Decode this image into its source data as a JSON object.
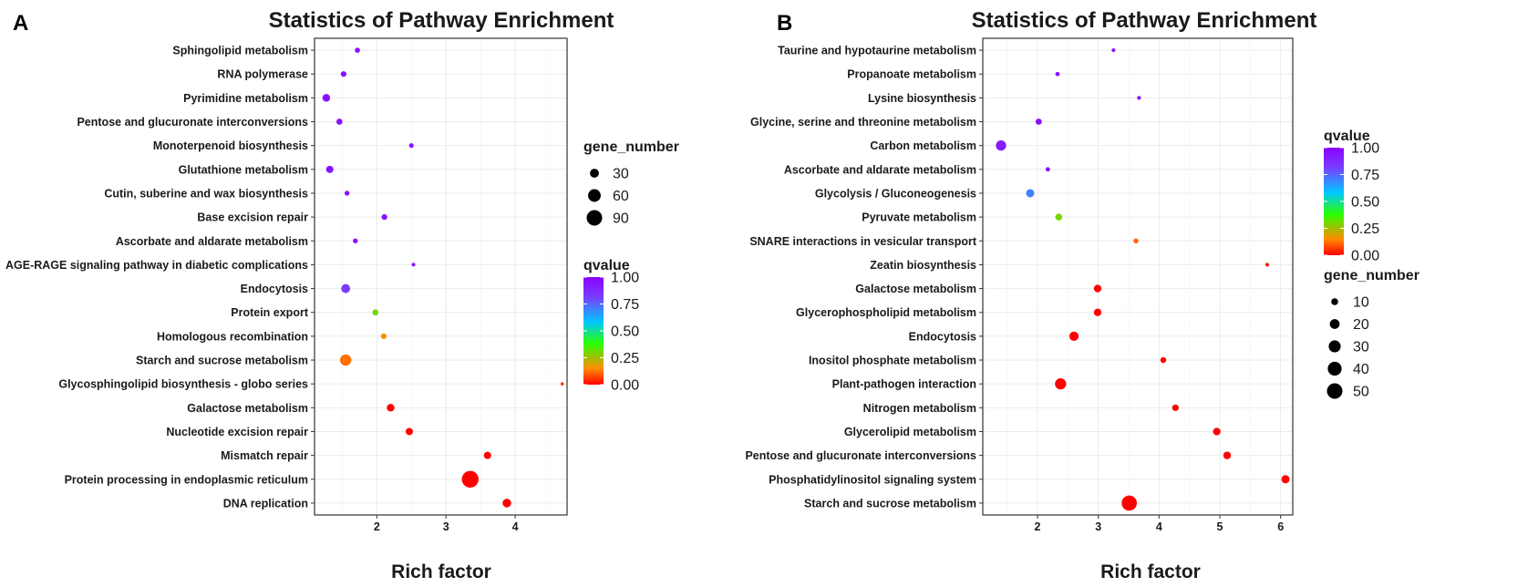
{
  "chart_data": [
    {
      "panel": "A",
      "type": "scatter",
      "title": "Statistics of Pathway Enrichment",
      "xlabel": "Rich factor",
      "ylabel": "",
      "xlim": [
        1.1,
        4.75
      ],
      "xticks": [
        "2",
        "3",
        "4"
      ],
      "xtick_values": [
        2,
        3,
        4
      ],
      "categories": [
        "Sphingolipid metabolism",
        "RNA polymerase",
        "Pyrimidine metabolism",
        "Pentose and glucuronate interconversions",
        "Monoterpenoid biosynthesis",
        "Glutathione metabolism",
        "Cutin, suberine and wax biosynthesis",
        "Base excision repair",
        "Ascorbate and aldarate metabolism",
        "AGE-RAGE signaling pathway in diabetic complications",
        "Endocytosis",
        "Protein export",
        "Homologous recombination",
        "Starch and sucrose metabolism",
        "Glycosphingolipid biosynthesis - globo series",
        "Galactose metabolism",
        "Nucleotide excision repair",
        "Mismatch repair",
        "Protein processing in endoplasmic reticulum",
        "DNA replication"
      ],
      "points": [
        {
          "rich_factor": 1.72,
          "qvalue": 0.95,
          "gene_number": 10
        },
        {
          "rich_factor": 1.52,
          "qvalue": 0.95,
          "gene_number": 12
        },
        {
          "rich_factor": 1.27,
          "qvalue": 0.95,
          "gene_number": 22
        },
        {
          "rich_factor": 1.46,
          "qvalue": 0.95,
          "gene_number": 14
        },
        {
          "rich_factor": 2.5,
          "qvalue": 0.95,
          "gene_number": 8
        },
        {
          "rich_factor": 1.32,
          "qvalue": 0.95,
          "gene_number": 20
        },
        {
          "rich_factor": 1.57,
          "qvalue": 0.95,
          "gene_number": 9
        },
        {
          "rich_factor": 2.11,
          "qvalue": 0.95,
          "gene_number": 12
        },
        {
          "rich_factor": 1.69,
          "qvalue": 0.95,
          "gene_number": 9
        },
        {
          "rich_factor": 2.53,
          "qvalue": 0.95,
          "gene_number": 5
        },
        {
          "rich_factor": 1.55,
          "qvalue": 0.82,
          "gene_number": 30
        },
        {
          "rich_factor": 1.98,
          "qvalue": 0.3,
          "gene_number": 14
        },
        {
          "rich_factor": 2.1,
          "qvalue": 0.15,
          "gene_number": 12
        },
        {
          "rich_factor": 1.55,
          "qvalue": 0.12,
          "gene_number": 48
        },
        {
          "rich_factor": 4.68,
          "qvalue": 0.05,
          "gene_number": 4
        },
        {
          "rich_factor": 2.2,
          "qvalue": 0.0,
          "gene_number": 22
        },
        {
          "rich_factor": 2.47,
          "qvalue": 0.0,
          "gene_number": 20
        },
        {
          "rich_factor": 3.6,
          "qvalue": 0.0,
          "gene_number": 20
        },
        {
          "rich_factor": 3.35,
          "qvalue": 0.0,
          "gene_number": 105
        },
        {
          "rich_factor": 3.88,
          "qvalue": 0.0,
          "gene_number": 28
        }
      ],
      "legend_order": [
        "gene_number",
        "qvalue"
      ],
      "size_legend": {
        "title": "gene_number",
        "labels": [
          "30",
          "60",
          "90"
        ],
        "values": [
          30,
          60,
          90
        ]
      },
      "color_legend": {
        "title": "qvalue",
        "labels": [
          "1.00",
          "0.75",
          "0.50",
          "0.25",
          "0.00"
        ],
        "values": [
          1.0,
          0.75,
          0.5,
          0.25,
          0.0
        ]
      },
      "size_scale": {
        "ref_value": 90,
        "ref_radius": 8.5
      }
    },
    {
      "panel": "B",
      "type": "scatter",
      "title": "Statistics of Pathway Enrichment",
      "xlabel": "Rich factor",
      "ylabel": "",
      "xlim": [
        1.1,
        6.2
      ],
      "xticks": [
        "2",
        "3",
        "4",
        "5",
        "6"
      ],
      "xtick_values": [
        2,
        3,
        4,
        5,
        6
      ],
      "categories": [
        "Taurine and hypotaurine metabolism",
        "Propanoate metabolism",
        "Lysine biosynthesis",
        "Glycine, serine and threonine metabolism",
        "Carbon metabolism",
        "Ascorbate and aldarate metabolism",
        "Glycolysis / Gluconeogenesis",
        "Pyruvate metabolism",
        "SNARE interactions in vesicular transport",
        "Zeatin biosynthesis",
        "Galactose metabolism",
        "Glycerophospholipid metabolism",
        "Endocytosis",
        "Inositol phosphate metabolism",
        "Plant-pathogen interaction",
        "Nitrogen metabolism",
        "Glycerolipid metabolism",
        "Pentose and glucuronate interconversions",
        "Phosphatidylinositol signaling system",
        "Starch and sucrose metabolism"
      ],
      "points": [
        {
          "rich_factor": 3.25,
          "qvalue": 0.95,
          "gene_number": 3
        },
        {
          "rich_factor": 2.33,
          "qvalue": 0.95,
          "gene_number": 4
        },
        {
          "rich_factor": 3.67,
          "qvalue": 0.95,
          "gene_number": 3
        },
        {
          "rich_factor": 2.02,
          "qvalue": 0.95,
          "gene_number": 8
        },
        {
          "rich_factor": 1.4,
          "qvalue": 0.92,
          "gene_number": 22
        },
        {
          "rich_factor": 2.17,
          "qvalue": 0.95,
          "gene_number": 4
        },
        {
          "rich_factor": 1.88,
          "qvalue": 0.7,
          "gene_number": 14
        },
        {
          "rich_factor": 2.35,
          "qvalue": 0.3,
          "gene_number": 10
        },
        {
          "rich_factor": 3.62,
          "qvalue": 0.1,
          "gene_number": 5
        },
        {
          "rich_factor": 5.78,
          "qvalue": 0.02,
          "gene_number": 3
        },
        {
          "rich_factor": 2.99,
          "qvalue": 0.0,
          "gene_number": 12
        },
        {
          "rich_factor": 2.99,
          "qvalue": 0.0,
          "gene_number": 12
        },
        {
          "rich_factor": 2.6,
          "qvalue": 0.0,
          "gene_number": 18
        },
        {
          "rich_factor": 4.07,
          "qvalue": 0.0,
          "gene_number": 7
        },
        {
          "rich_factor": 2.38,
          "qvalue": 0.0,
          "gene_number": 26
        },
        {
          "rich_factor": 4.27,
          "qvalue": 0.0,
          "gene_number": 9
        },
        {
          "rich_factor": 4.95,
          "qvalue": 0.0,
          "gene_number": 12
        },
        {
          "rich_factor": 5.12,
          "qvalue": 0.0,
          "gene_number": 12
        },
        {
          "rich_factor": 6.08,
          "qvalue": 0.0,
          "gene_number": 14
        },
        {
          "rich_factor": 3.51,
          "qvalue": 0.0,
          "gene_number": 48
        }
      ],
      "legend_order": [
        "qvalue",
        "gene_number"
      ],
      "size_legend": {
        "title": "gene_number",
        "labels": [
          "10",
          "20",
          "30",
          "40",
          "50"
        ],
        "values": [
          10,
          20,
          30,
          40,
          50
        ]
      },
      "color_legend": {
        "title": "qvalue",
        "labels": [
          "1.00",
          "0.75",
          "0.50",
          "0.25",
          "0.00"
        ],
        "values": [
          1.0,
          0.75,
          0.5,
          0.25,
          0.0
        ]
      },
      "size_scale": {
        "ref_value": 50,
        "ref_radius": 8.5
      }
    }
  ],
  "colors": {
    "gradient_stops": [
      "#8b00ff",
      "#7b3cff",
      "#00c8ff",
      "#2bff00",
      "#ff7f00",
      "#ff0000"
    ],
    "panel_border": "#333333",
    "grid": "#ebebeb",
    "legend_dot": "#000000"
  }
}
